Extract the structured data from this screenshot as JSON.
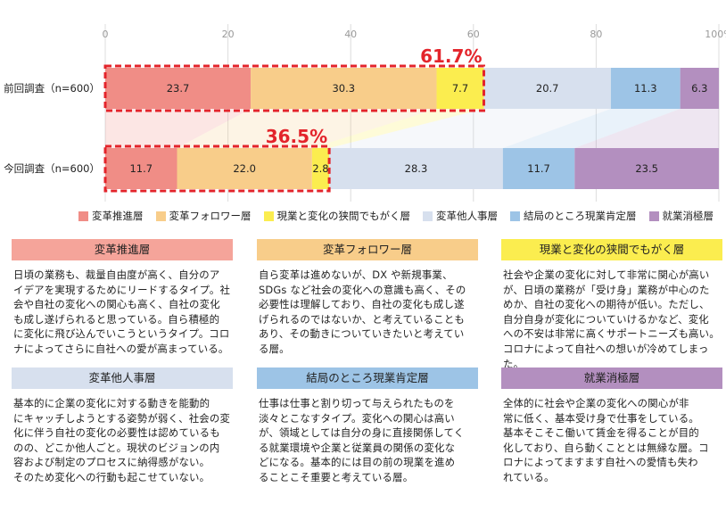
{
  "chart_data": {
    "type": "bar",
    "orientation": "horizontal-stacked",
    "x_ticks": [
      "0",
      "20",
      "40",
      "60",
      "80",
      "100%"
    ],
    "xlim": [
      0,
      100
    ],
    "grid": true,
    "categories": [
      "前回調査（n=600）",
      "今回調査（n=600）"
    ],
    "series": [
      {
        "name": "変革推進層",
        "color": "#f08d86",
        "values": [
          23.7,
          11.7
        ],
        "labels": [
          "23.7",
          "11.7"
        ]
      },
      {
        "name": "変革フォロワー層",
        "color": "#f8cd8a",
        "values": [
          30.3,
          22.0
        ],
        "labels": [
          "30.3",
          "22.0"
        ]
      },
      {
        "name": "現業と変化の狭間でもがく層",
        "color": "#fbed4f",
        "values": [
          7.7,
          2.8
        ],
        "labels": [
          "7.7",
          "2.8"
        ]
      },
      {
        "name": "変革他人事層",
        "color": "#d7e0ee",
        "values": [
          20.7,
          28.3
        ],
        "labels": [
          "20.7",
          "28.3"
        ]
      },
      {
        "name": "結局のところ現業肯定層",
        "color": "#9dc4e6",
        "values": [
          11.3,
          11.7
        ],
        "labels": [
          "11.3",
          "11.7"
        ]
      },
      {
        "name": "就業消極層",
        "color": "#b38fbf",
        "values": [
          6.3,
          23.5
        ],
        "labels": [
          "6.3",
          "23.5"
        ]
      }
    ],
    "annotations": [
      {
        "text": "61.7%",
        "bar": 0,
        "highlight_series": [
          0,
          1,
          2
        ],
        "color": "#e3242b"
      },
      {
        "text": "36.5%",
        "bar": 1,
        "highlight_series": [
          0,
          1,
          2
        ],
        "color": "#e3242b"
      }
    ]
  },
  "cards": [
    {
      "title": "変革推進層",
      "header_color": "#f5a49a",
      "lines": [
        "日頃の業務も、裁量自由度が高く、自分のア",
        "イデアを実現するためにリードするタイプ。社",
        "会や自社の変化への関心も高く、自社の変化",
        "も成し遂げられると思っている。自ら積極的",
        "に変化に飛び込んでいこうというタイプ。コロ",
        "ナによってさらに自社への愛が高まっている。"
      ]
    },
    {
      "title": "変革フォロワー層",
      "header_color": "#f8cd8a",
      "lines": [
        "自ら変革は進めないが、DX や新規事業、",
        "SDGs など社会の変化への意識も高く、その",
        "必要性は理解しており、自社の変化も成し遂",
        "げられるのではないか、と考えていることも",
        "あり、その動きについていきたいと考えてい",
        "る層。"
      ]
    },
    {
      "title": "現業と変化の狭間でもがく層",
      "header_color": "#fbed4f",
      "lines": [
        "社会や企業の変化に対して非常に関心が高い",
        "が、日頃の業務が「受け身」業務が中心のた",
        "めか、自社の変化への期待が低い。ただし、",
        "自分自身が変化についていけるかなど、変化",
        "への不安は非常に高くサポートニーズも高い。",
        "コロナによって自社への想いが冷めてしまった。"
      ]
    },
    {
      "title": "変革他人事層",
      "header_color": "#d7e0ee",
      "lines": [
        "基本的に企業の変化に対する動きを能動的",
        "にキャッチしようとする姿勢が弱く、社会の変",
        "化に伴う自社の変化の必要性は認めているも",
        "のの、どこか他人ごと。現状のビジョンの内",
        "容および制定のプロセスに納得感がない。",
        "そのため変化への行動も起こせていない。"
      ]
    },
    {
      "title": "結局のところ現業肯定層",
      "header_color": "#9dc4e6",
      "lines": [
        "仕事は仕事と割り切って与えられたものを",
        "淡々とこなすタイプ。変化への関心は高い",
        "が、領域としては自分の身に直接関係してく",
        "る就業環境や企業と従業員の関係の変化な",
        "どになる。基本的には目の前の現業を進め",
        "ることこそ重要と考えている層。"
      ]
    },
    {
      "title": "就業消極層",
      "header_color": "#b38fbf",
      "lines": [
        "全体的に社会や企業の変化への関心が非",
        "常に低く、基本受け身で仕事をしている。",
        "基本そこそこ働いて賃金を得ることが目的",
        "化しており、自ら動くこととは無縁な層。コ",
        "ロナによってますます自社への愛情も失わ",
        "れている。"
      ]
    }
  ]
}
